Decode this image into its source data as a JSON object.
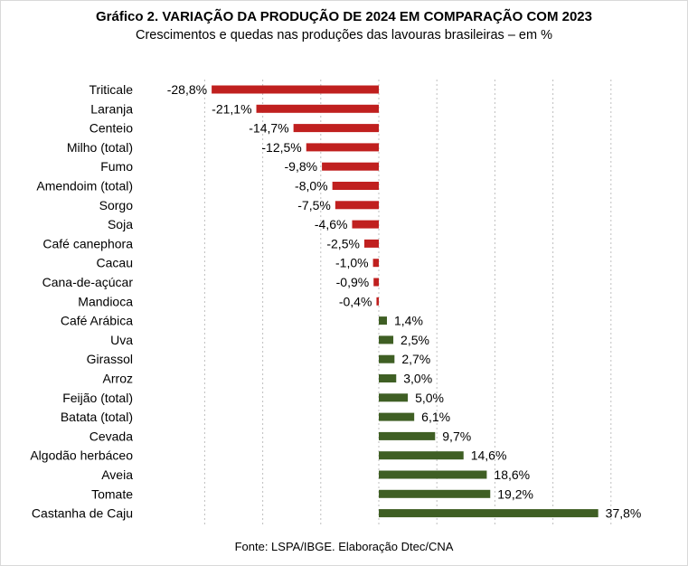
{
  "chart_data": {
    "type": "bar",
    "orientation": "horizontal",
    "title": "Gráfico 2. VARIAÇÃO DA PRODUÇÃO DE 2024 EM COMPARAÇÃO COM 2023",
    "subtitle": "Crescimentos e quedas nas produções das lavouras brasileiras – em %",
    "source": "Fonte: LSPA/IBGE. Elaboração Dtec/CNA",
    "categories": [
      "Triticale",
      "Laranja",
      "Centeio",
      "Milho (total)",
      "Fumo",
      "Amendoim (total)",
      "Sorgo",
      "Soja",
      "Café canephora",
      "Cacau",
      "Cana-de-açúcar",
      "Mandioca",
      "Café Arábica",
      "Uva",
      "Girassol",
      "Arroz",
      "Feijão (total)",
      "Batata (total)",
      "Cevada",
      "Algodão herbáceo",
      "Aveia",
      "Tomate",
      "Castanha de Caju"
    ],
    "values": [
      -28.8,
      -21.1,
      -14.7,
      -12.5,
      -9.8,
      -8.0,
      -7.5,
      -4.6,
      -2.5,
      -1.0,
      -0.9,
      -0.4,
      1.4,
      2.5,
      2.7,
      3.0,
      5.0,
      6.1,
      9.7,
      14.6,
      18.6,
      19.2,
      37.8
    ],
    "labels": [
      "-28,8%",
      "-21,1%",
      "-14,7%",
      "-12,5%",
      "-9,8%",
      "-8,0%",
      "-7,5%",
      "-4,6%",
      "-2,5%",
      "-1,0%",
      "-0,9%",
      "-0,4%",
      "1,4%",
      "2,5%",
      "2,7%",
      "3,0%",
      "5,0%",
      "6,1%",
      "9,7%",
      "14,6%",
      "18,6%",
      "19,2%",
      "37,8%"
    ],
    "xlim": [
      -30,
      40
    ],
    "grid": "vertical-dashed",
    "legend": "none",
    "colors": {
      "negative": "#c0201f",
      "positive": "#3f5f24",
      "grid": "#bfbfbf"
    }
  }
}
